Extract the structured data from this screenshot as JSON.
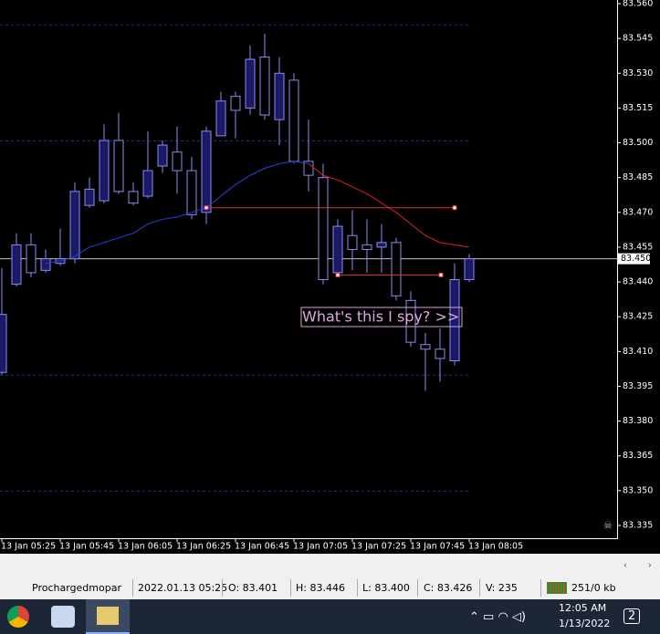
{
  "chart_data": {
    "type": "candlestick",
    "categories": [
      "13 Jan 05:25",
      null,
      null,
      null,
      "13 Jan 05:45",
      null,
      null,
      null,
      "13 Jan 06:05",
      null,
      null,
      null,
      "13 Jan 06:25",
      null,
      null,
      null,
      "13 Jan 06:45",
      null,
      null,
      null,
      "13 Jan 07:05",
      null,
      null,
      null,
      "13 Jan 07:25",
      null,
      null,
      null,
      "13 Jan 07:45",
      null,
      null,
      null,
      "13 Jan 08:05"
    ],
    "open": [
      83.401,
      83.439,
      83.456,
      83.445,
      83.448,
      83.45,
      83.473,
      83.475,
      83.501,
      83.479,
      83.477,
      83.49,
      83.496,
      83.488,
      83.47,
      83.503,
      83.52,
      83.515,
      83.537,
      83.51,
      83.527,
      83.492,
      83.485,
      83.444,
      83.46,
      83.456,
      83.455,
      83.457,
      83.432,
      83.413,
      83.411,
      83.406,
      83.441
    ],
    "high": [
      83.446,
      83.461,
      83.461,
      83.454,
      83.463,
      83.483,
      83.485,
      83.508,
      83.513,
      83.483,
      83.505,
      83.501,
      83.507,
      83.494,
      83.507,
      83.522,
      83.522,
      83.542,
      83.547,
      83.537,
      83.53,
      83.51,
      83.491,
      83.467,
      83.471,
      83.467,
      83.465,
      83.459,
      83.436,
      83.418,
      83.42,
      83.448,
      83.452
    ],
    "low": [
      83.4,
      83.438,
      83.442,
      83.444,
      83.447,
      83.448,
      83.472,
      83.474,
      83.478,
      83.473,
      83.476,
      83.487,
      83.478,
      83.467,
      83.465,
      83.503,
      83.502,
      83.512,
      83.51,
      83.499,
      83.491,
      83.479,
      83.439,
      83.442,
      83.445,
      83.444,
      83.444,
      83.432,
      83.412,
      83.393,
      83.397,
      83.404,
      83.44
    ],
    "close": [
      83.426,
      83.456,
      83.444,
      83.45,
      83.45,
      83.479,
      83.48,
      83.501,
      83.479,
      83.474,
      83.488,
      83.499,
      83.488,
      83.469,
      83.505,
      83.518,
      83.514,
      83.536,
      83.512,
      83.53,
      83.492,
      83.486,
      83.441,
      83.464,
      83.454,
      83.454,
      83.457,
      83.434,
      83.414,
      83.411,
      83.407,
      83.441,
      83.45
    ],
    "candle_color": "#8c8cf0",
    "bull_fill": "#1a1a66",
    "bear_fill": "#000000",
    "series": [
      {
        "color": "#2a3ee0",
        "values": [
          null,
          null,
          null,
          83.448,
          83.449,
          83.451,
          83.455,
          83.457,
          83.459,
          83.461,
          83.465,
          83.467,
          83.468,
          83.47,
          83.472,
          83.477,
          83.482,
          83.486,
          83.489,
          83.491,
          83.492,
          83.491,
          null,
          null,
          null,
          null,
          null,
          null,
          null,
          null,
          null,
          null,
          null
        ]
      },
      {
        "color": "#e02020",
        "values": [
          null,
          null,
          null,
          null,
          null,
          null,
          null,
          null,
          null,
          null,
          null,
          null,
          null,
          null,
          null,
          null,
          null,
          null,
          null,
          null,
          null,
          83.491,
          83.486,
          83.484,
          83.481,
          83.478,
          83.474,
          83.47,
          83.465,
          83.46,
          83.457,
          83.456,
          83.455
        ]
      }
    ],
    "hlines": [
      83.472,
      83.443
    ],
    "hline_color": "#e03030",
    "levels": [
      83.551,
      83.501,
      83.4,
      83.35
    ],
    "current_price": {
      "value": 83.45,
      "label": "83.450"
    },
    "annotation": "What's this I spy? >>",
    "ylim": [
      83.335,
      83.56
    ],
    "yticks": [
      {
        "value": 83.56,
        "label": "83.560"
      },
      83.545,
      {
        "value": 83.53,
        "label": "83.530"
      },
      83.515,
      {
        "value": 83.5,
        "label": "83.500"
      },
      83.485,
      {
        "value": 83.47,
        "label": "83.470"
      },
      83.455,
      {
        "value": 83.44,
        "label": "83.440"
      },
      83.425,
      {
        "value": 83.41,
        "label": "83.410"
      },
      83.395,
      {
        "value": 83.38,
        "label": "83.380"
      },
      83.365,
      {
        "value": 83.35,
        "label": "83.350"
      },
      83.335
    ]
  },
  "status_bar": {
    "account": "Prochargedmopar",
    "time": "2022.01.13 05:25",
    "open": "O: 83.401",
    "high": "H: 83.446",
    "low": "L: 83.400",
    "close": "C: 83.426",
    "volume": "V: 235",
    "traffic": "251/0 kb"
  },
  "taskbar": {
    "time": "12:05 AM",
    "date": "1/13/2022",
    "notifications": "2"
  }
}
